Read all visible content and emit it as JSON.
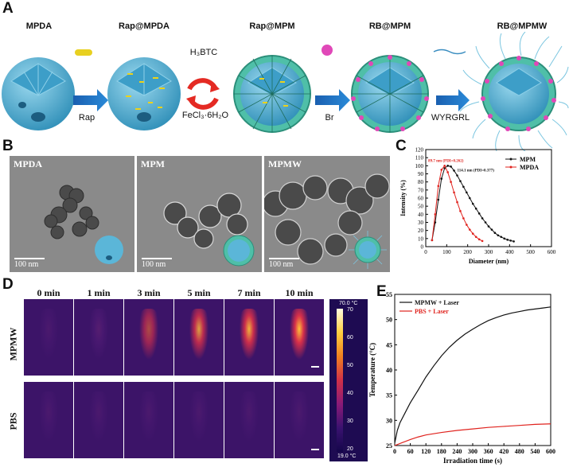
{
  "panels": {
    "A": "A",
    "B": "B",
    "C": "C",
    "D": "D",
    "E": "E"
  },
  "schematic": {
    "stages": [
      "MPDA",
      "Rap@MPDA",
      "Rap@MPM",
      "RB@MPM",
      "RB@MPMW"
    ],
    "reagents": {
      "rap": "Rap",
      "h3btc": "H₃BTC",
      "fecl3": "FeCl₃·6H₂O",
      "br": "Br",
      "peptide": "WYRGRL"
    }
  },
  "tem": {
    "images": [
      {
        "label": "MPDA",
        "scale": "100 nm"
      },
      {
        "label": "MPM",
        "scale": "100 nm"
      },
      {
        "label": "MPMW",
        "scale": "100 nm"
      }
    ]
  },
  "thermal": {
    "times": [
      "0 min",
      "1 min",
      "3 min",
      "5 min",
      "7 min",
      "10 min"
    ],
    "rows": [
      "MPMW",
      "PBS"
    ],
    "intensity": {
      "MPMW": [
        0.02,
        0.25,
        0.62,
        0.82,
        0.92,
        1.0
      ],
      "PBS": [
        0.0,
        0.05,
        0.08,
        0.1,
        0.1,
        0.12
      ]
    },
    "colorbar_top": "70.0 °C",
    "colorbar_bottom": "19.0 °C",
    "colorbar_ticks": [
      "70",
      "60",
      "50",
      "40",
      "30",
      "20"
    ]
  },
  "colors": {
    "mpm": "#111111",
    "mpda": "#e0231e",
    "sphere": "#5bb6d8",
    "shell": "#5ec9b0",
    "dots": "#e048b8"
  },
  "chart_data": [
    {
      "type": "line",
      "xlabel": "Diameter (nm)",
      "ylabel": "Intensity (%)",
      "xlim": [
        0,
        600
      ],
      "ylim": [
        0,
        120
      ],
      "xticks": [
        0,
        100,
        200,
        300,
        400,
        500,
        600
      ],
      "yticks": [
        0,
        10,
        20,
        30,
        40,
        50,
        60,
        70,
        80,
        90,
        100,
        110,
        120
      ],
      "legend_position": "top-right",
      "annotations": [
        {
          "text": "89.7 nm (PDI=0.262)",
          "series": "MPDA"
        },
        {
          "text": "114.1 nm (PDI=0.377)",
          "series": "MPM"
        }
      ],
      "series": [
        {
          "name": "MPM",
          "x": [
            30,
            45,
            60,
            75,
            90,
            105,
            120,
            135,
            150,
            165,
            180,
            195,
            210,
            225,
            240,
            255,
            270,
            285,
            300,
            315,
            330,
            345,
            360,
            375,
            390,
            405,
            420
          ],
          "y": [
            8,
            30,
            58,
            84,
            97,
            100,
            99,
            94,
            88,
            81,
            74,
            67,
            60,
            53,
            47,
            41,
            35,
            30,
            25,
            21,
            17,
            14,
            12,
            10,
            8.5,
            7.5,
            6.5
          ]
        },
        {
          "name": "MPDA",
          "x": [
            30,
            45,
            60,
            75,
            90,
            105,
            120,
            135,
            150,
            165,
            180,
            195,
            210,
            225,
            240,
            255,
            270
          ],
          "y": [
            8,
            40,
            75,
            95,
            100,
            92,
            80,
            67,
            55,
            44,
            35,
            27,
            21,
            16,
            12,
            9,
            7
          ]
        }
      ]
    },
    {
      "type": "line",
      "xlabel": "Irradiation time (s)",
      "ylabel": "Temperature (°C)",
      "xlim": [
        0,
        600
      ],
      "ylim": [
        25,
        55
      ],
      "xticks": [
        0,
        60,
        120,
        180,
        240,
        300,
        360,
        420,
        480,
        540,
        600
      ],
      "yticks": [
        25,
        30,
        35,
        40,
        45,
        50,
        55
      ],
      "legend_position": "top-left",
      "series": [
        {
          "name": "MPMW + Laser",
          "x": [
            0,
            10,
            20,
            40,
            60,
            90,
            120,
            150,
            180,
            210,
            240,
            270,
            300,
            330,
            360,
            390,
            420,
            450,
            480,
            510,
            540,
            570,
            600
          ],
          "y": [
            25.5,
            28,
            29.5,
            31.5,
            33.5,
            36,
            38.6,
            40.8,
            42.8,
            44.5,
            45.9,
            47.1,
            48.1,
            49,
            49.8,
            50.4,
            50.9,
            51.3,
            51.6,
            51.9,
            52.1,
            52.3,
            52.5
          ]
        },
        {
          "name": "PBS + Laser",
          "x": [
            0,
            30,
            60,
            90,
            120,
            180,
            240,
            300,
            360,
            420,
            480,
            540,
            600
          ],
          "y": [
            25.0,
            25.6,
            26.2,
            26.7,
            27.1,
            27.6,
            28.0,
            28.3,
            28.6,
            28.8,
            29.0,
            29.2,
            29.3
          ]
        }
      ]
    }
  ]
}
